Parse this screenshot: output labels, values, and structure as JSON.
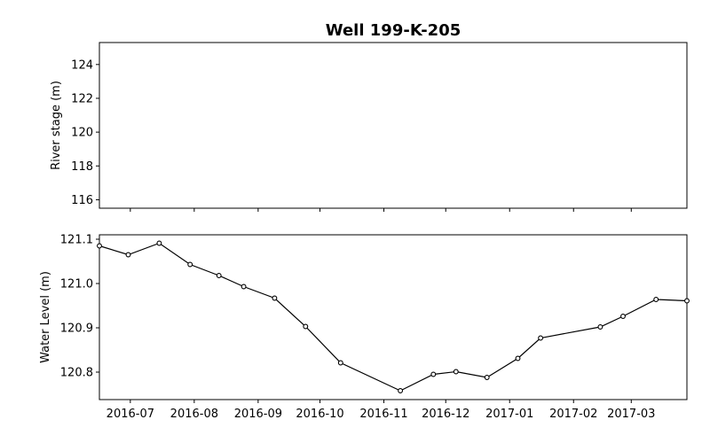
{
  "chart_data": {
    "title": "Well 199-K-205",
    "panels": [
      {
        "type": "line",
        "ylabel": "River stage (m)",
        "yticks": [
          116,
          118,
          120,
          122,
          124
        ],
        "ylim": [
          115.5,
          125.3
        ],
        "series": []
      },
      {
        "type": "line",
        "ylabel": "Water Level (m)",
        "yticks": [
          120.8,
          120.9,
          121.0,
          121.1
        ],
        "ytick_labels": [
          "120.8",
          "120.9",
          "121.0",
          "121.1"
        ],
        "ylim": [
          120.738,
          121.11
        ],
        "marker": "open-circle",
        "line_color": "#000000",
        "series": [
          {
            "x": [
              "2016-06-16",
              "2016-06-30",
              "2016-07-15",
              "2016-07-30",
              "2016-08-13",
              "2016-08-25",
              "2016-09-09",
              "2016-09-24",
              "2016-10-11",
              "2016-11-09",
              "2016-11-25",
              "2016-12-06",
              "2016-12-21",
              "2017-01-05",
              "2017-01-16",
              "2017-02-14",
              "2017-02-25",
              "2017-03-13",
              "2017-03-28"
            ],
            "y": [
              121.085,
              121.065,
              121.091,
              121.043,
              121.018,
              120.993,
              120.967,
              120.903,
              120.821,
              120.758,
              120.795,
              120.801,
              120.788,
              120.831,
              120.877,
              120.902,
              120.926,
              120.964,
              120.961
            ]
          }
        ]
      }
    ],
    "x_range": [
      "2016-06-16",
      "2017-03-28"
    ],
    "x_ticks": [
      "2016-07",
      "2016-08",
      "2016-09",
      "2016-10",
      "2016-11",
      "2016-12",
      "2017-01",
      "2017-02",
      "2017-03"
    ],
    "grid": false
  }
}
